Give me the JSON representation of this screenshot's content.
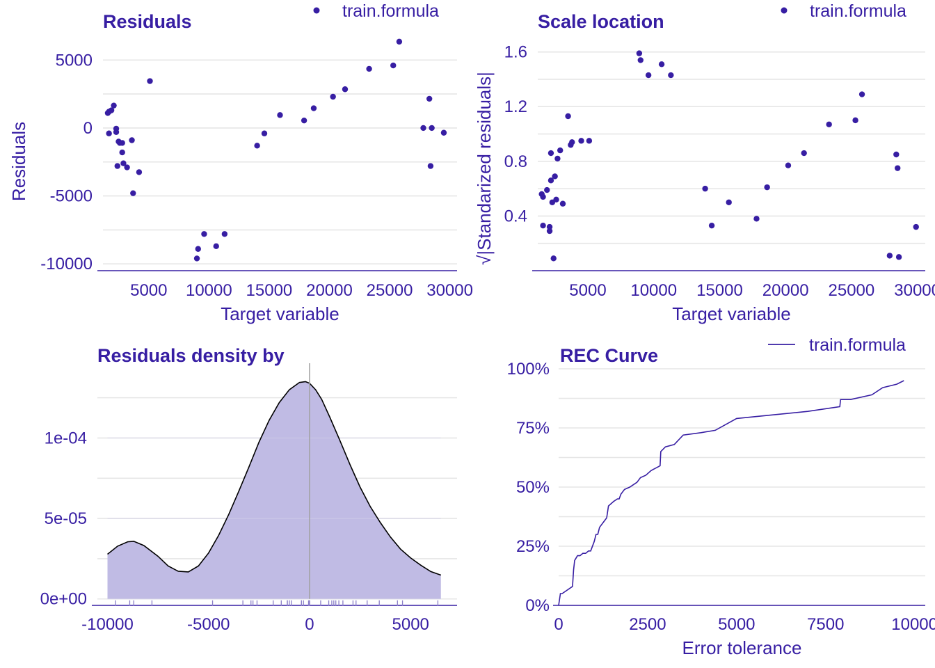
{
  "colors": {
    "text": "#371ea3",
    "point": "#371ea3",
    "grid": "#e6e6e6",
    "density_fill": "#c0bbe4",
    "density_line": "#000000",
    "zero_line": "#a0a0a0",
    "rug": "#8a7ec8"
  },
  "chart_data": [
    {
      "id": "residuals",
      "type": "scatter",
      "title": "Residuals",
      "xlabel": "Target variable",
      "ylabel": "Residuals",
      "legend": {
        "label": "train.formula",
        "placement": "top-right",
        "marker": "point"
      },
      "xlim": [
        1200,
        30600
      ],
      "ylim": [
        -10500,
        6600
      ],
      "xticks": [
        5000,
        10000,
        15000,
        20000,
        25000,
        30000
      ],
      "xtick_labels": [
        "5000",
        "10000",
        "15000",
        "20000",
        "25000",
        "30000"
      ],
      "yticks": [
        -10000,
        -5000,
        0,
        5000
      ],
      "ytick_labels": [
        "-10000",
        "-5000",
        "0",
        "5000"
      ],
      "series": [
        {
          "name": "train.formula",
          "x": [
            1600,
            1700,
            1900,
            2100,
            1700,
            2300,
            2400,
            2500,
            2300,
            2600,
            2800,
            2900,
            2800,
            3200,
            3600,
            3700,
            4200,
            5100,
            9000,
            9100,
            9600,
            10600,
            11300,
            14000,
            14600,
            15900,
            17900,
            18700,
            20300,
            21300,
            23300,
            25300,
            25800,
            27800,
            28300,
            28400,
            28500,
            29500
          ],
          "y": [
            1100,
            1200,
            1300,
            1650,
            -400,
            -300,
            -2800,
            -1000,
            -50,
            -1100,
            -1800,
            -2600,
            -1100,
            -2900,
            -900,
            -4800,
            -3250,
            3450,
            -9600,
            -8900,
            -7800,
            -8700,
            -7800,
            -1300,
            -400,
            950,
            550,
            1450,
            2300,
            2850,
            4350,
            4600,
            6350,
            0,
            2150,
            -2800,
            0,
            -350
          ]
        }
      ]
    },
    {
      "id": "scale-location",
      "type": "scatter",
      "title": "Scale location",
      "xlabel": "Target variable",
      "ylabel": "√|Standarized residuals|",
      "legend": {
        "label": "train.formula",
        "placement": "top-right",
        "marker": "point"
      },
      "xlim": [
        1200,
        30600
      ],
      "ylim": [
        0.0,
        1.7
      ],
      "xticks": [
        5000,
        10000,
        15000,
        20000,
        25000,
        30000
      ],
      "xtick_labels": [
        "5000",
        "10000",
        "15000",
        "20000",
        "25000",
        "30000"
      ],
      "yticks": [
        0.4,
        0.8,
        1.2,
        1.6
      ],
      "ytick_labels": [
        "0.4",
        "0.8",
        "1.2",
        "1.6"
      ],
      "series": [
        {
          "name": "train.formula",
          "x": [
            1500,
            1600,
            1600,
            1900,
            2100,
            2100,
            2200,
            2200,
            2300,
            2400,
            2500,
            2600,
            2700,
            2900,
            3100,
            3500,
            3700,
            3800,
            4500,
            5100,
            8900,
            9000,
            9600,
            10600,
            11300,
            13900,
            14400,
            15700,
            17800,
            18600,
            20200,
            21400,
            23300,
            25300,
            25800,
            27900,
            28400,
            28500,
            28600,
            29900
          ],
          "y": [
            0.56,
            0.54,
            0.33,
            0.59,
            0.32,
            0.29,
            0.66,
            0.86,
            0.5,
            0.09,
            0.69,
            0.52,
            0.82,
            0.88,
            0.49,
            1.13,
            0.92,
            0.94,
            0.95,
            0.95,
            1.59,
            1.54,
            1.43,
            1.51,
            1.43,
            0.6,
            0.33,
            0.5,
            0.38,
            0.61,
            0.77,
            0.86,
            1.07,
            1.1,
            1.29,
            0.11,
            0.85,
            0.75,
            0.1,
            0.32
          ]
        }
      ]
    },
    {
      "id": "residuals-density",
      "type": "area",
      "title": "Residuals density by",
      "xlabel": "",
      "ylabel": "",
      "xlim": [
        -10500,
        7300
      ],
      "ylim": [
        -4e-06,
        0.000143
      ],
      "xticks": [
        -10000,
        -5000,
        0,
        5000
      ],
      "xtick_labels": [
        "-10000",
        "-5000",
        "0",
        "5000"
      ],
      "yticks": [
        0,
        5e-05,
        0.0001
      ],
      "ytick_labels": [
        "0e+00",
        "5e-05",
        "1e-04"
      ],
      "vline": 0,
      "x": [
        -10000,
        -9500,
        -9000,
        -8700,
        -8200,
        -7500,
        -7000,
        -6500,
        -6000,
        -5500,
        -5000,
        -4500,
        -4000,
        -3500,
        -3000,
        -2500,
        -2000,
        -1500,
        -1000,
        -500,
        -200,
        0,
        300,
        600,
        1000,
        1500,
        2000,
        2500,
        3000,
        3500,
        4000,
        4500,
        5000,
        5500,
        6000,
        6500
      ],
      "y": [
        2.78e-05,
        3.28e-05,
        3.55e-05,
        3.58e-05,
        3.32e-05,
        2.65e-05,
        2.05e-05,
        1.72e-05,
        1.68e-05,
        2.05e-05,
        2.85e-05,
        3.95e-05,
        5.25e-05,
        6.7e-05,
        8.2e-05,
        9.75e-05,
        0.000111,
        0.000122,
        0.00013,
        0.0001345,
        0.000135,
        0.000134,
        0.00013,
        0.000124,
        0.000113,
        9.85e-05,
        8.35e-05,
        6.95e-05,
        5.75e-05,
        4.75e-05,
        3.85e-05,
        3.1e-05,
        2.55e-05,
        2.1e-05,
        1.7e-05,
        1.48e-05
      ],
      "rug": [
        -9600,
        -8900,
        -8700,
        -7800,
        -4800,
        -3300,
        -2900,
        -2800,
        -2600,
        -1800,
        -1400,
        -1100,
        -1100,
        -1000,
        -900,
        -400,
        -400,
        -300,
        -50,
        0,
        0,
        0,
        550,
        950,
        1100,
        1200,
        1300,
        1450,
        1650,
        2150,
        2300,
        2850,
        3450,
        4350,
        4600,
        6350
      ]
    },
    {
      "id": "rec-curve",
      "type": "line",
      "title": "REC Curve",
      "xlabel": "Error tolerance",
      "ylabel": "",
      "legend": {
        "label": "train.formula",
        "placement": "top-right",
        "marker": "line"
      },
      "xlim": [
        0,
        10300
      ],
      "ylim": [
        0,
        1.0
      ],
      "xticks": [
        0,
        2500,
        5000,
        7500,
        10000
      ],
      "xtick_labels": [
        "0",
        "2500",
        "5000",
        "7500",
        "10000"
      ],
      "yticks": [
        0,
        0.25,
        0.5,
        0.75,
        1.0
      ],
      "ytick_labels": [
        "0%",
        "25%",
        "50%",
        "75%",
        "100%"
      ],
      "series": [
        {
          "name": "train.formula",
          "x": [
            0,
            50,
            100,
            390,
            420,
            450,
            530,
            600,
            680,
            760,
            840,
            900,
            1000,
            1050,
            1100,
            1150,
            1250,
            1300,
            1350,
            1400,
            1550,
            1650,
            1700,
            1750,
            1850,
            2000,
            2100,
            2200,
            2300,
            2450,
            2600,
            2850,
            2870,
            3000,
            3250,
            3500,
            4000,
            4400,
            5000,
            6000,
            7000,
            7900,
            7920,
            8200,
            8800,
            9100,
            9500,
            9700
          ],
          "y": [
            0.0,
            0.05,
            0.05,
            0.08,
            0.15,
            0.19,
            0.21,
            0.21,
            0.22,
            0.22,
            0.23,
            0.23,
            0.27,
            0.3,
            0.3,
            0.33,
            0.35,
            0.36,
            0.37,
            0.42,
            0.44,
            0.45,
            0.45,
            0.47,
            0.49,
            0.5,
            0.51,
            0.52,
            0.54,
            0.55,
            0.57,
            0.59,
            0.65,
            0.67,
            0.68,
            0.72,
            0.73,
            0.74,
            0.79,
            0.805,
            0.82,
            0.84,
            0.87,
            0.87,
            0.89,
            0.92,
            0.935,
            0.95
          ]
        }
      ]
    }
  ]
}
